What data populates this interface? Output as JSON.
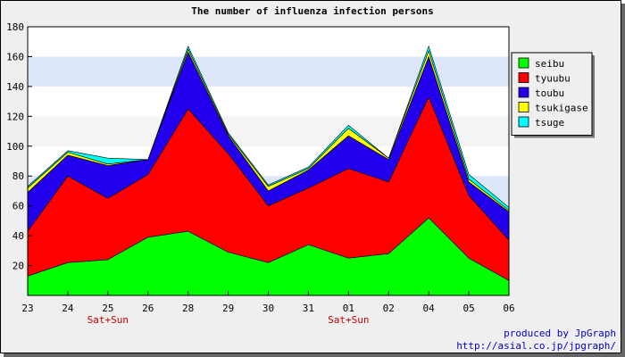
{
  "chart_data": {
    "type": "area",
    "stacked": true,
    "title": "The number of influenza infection persons",
    "categories": [
      "23",
      "24",
      "25",
      "26",
      "28",
      "29",
      "30",
      "31",
      "01",
      "02",
      "04",
      "05",
      "06"
    ],
    "category_sublabels": [
      "",
      "",
      "Sat+Sun",
      "",
      "",
      "",
      "",
      "",
      "Sat+Sun",
      "",
      "",
      "",
      ""
    ],
    "ylim": [
      0,
      180
    ],
    "yticks": [
      20,
      40,
      60,
      80,
      100,
      120,
      140,
      160,
      180
    ],
    "grid": "horizontal bands",
    "legend_position": "right",
    "series": [
      {
        "name": "seibu",
        "color": "#00ff00",
        "values": [
          13,
          22,
          24,
          39,
          43,
          29,
          22,
          34,
          25,
          28,
          52,
          25,
          10
        ]
      },
      {
        "name": "tyuubu",
        "color": "#ff0000",
        "values": [
          30,
          58,
          41,
          42,
          82,
          66,
          38,
          38,
          60,
          48,
          81,
          42,
          27
        ]
      },
      {
        "name": "toubu",
        "color": "#2200ee",
        "values": [
          26,
          14,
          22,
          10,
          38,
          12,
          10,
          12,
          22,
          15,
          27,
          9,
          19
        ]
      },
      {
        "name": "tsukigase",
        "color": "#ffff00",
        "values": [
          3,
          2,
          1,
          0,
          2,
          1,
          3,
          1,
          5,
          1,
          4,
          2,
          1
        ]
      },
      {
        "name": "tsuge",
        "color": "#00ffff",
        "values": [
          1,
          1,
          4,
          0,
          2,
          1,
          1,
          1,
          2,
          0,
          3,
          3,
          2
        ]
      }
    ]
  },
  "credit": {
    "line1": "produced by JpGraph",
    "line2": "http://asial.co.jp/jpgraph/"
  }
}
